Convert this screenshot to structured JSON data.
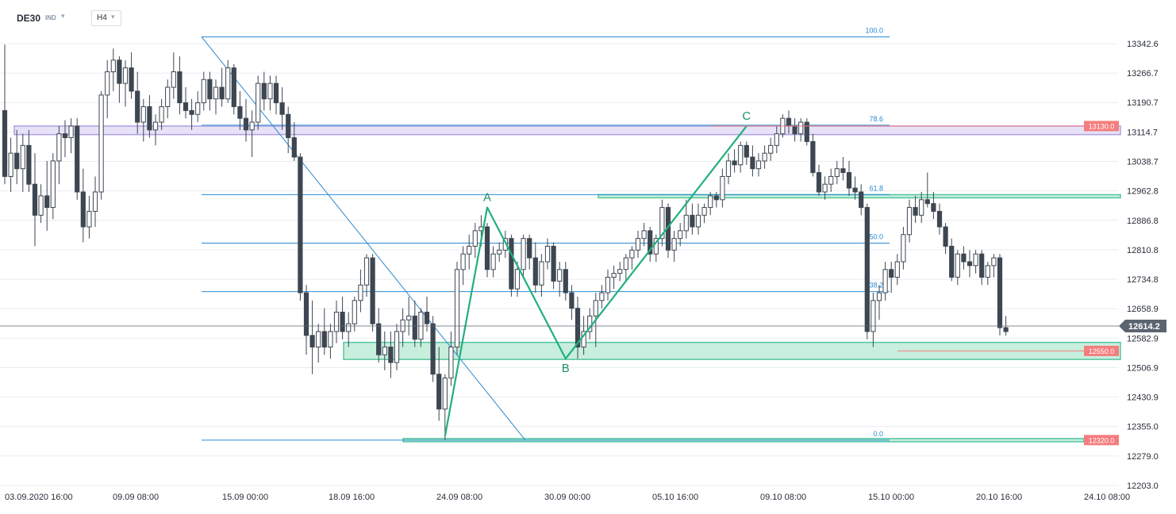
{
  "header": {
    "symbol": "DE30",
    "market": "IND",
    "symbol_dropdown_icon": "chevron-down-icon",
    "timeframe": "H4",
    "timeframe_dropdown_icon": "chevron-down-icon"
  },
  "colors": {
    "candle": "#3d4651",
    "fib_line": "#2b8ad1",
    "fib_text": "#2b8ad1",
    "zone_fill": "#c6eedd",
    "zone_border": "#4cc49a",
    "resistance_fill": "#e6e1f7",
    "resistance_border": "#a99be0",
    "abc_line": "#21b07d",
    "price_tag": "#f47d7d",
    "current_tag": "#5b6470",
    "grid": "#e9ecef"
  },
  "chart_data": {
    "type": "candlestick",
    "instrument": "DE30",
    "timeframe": "H4",
    "y_axis": {
      "ticks": [
        13342.6,
        13266.7,
        13190.7,
        13114.7,
        13038.7,
        12962.8,
        12886.8,
        12810.8,
        12734.8,
        12658.9,
        12582.9,
        12506.9,
        12430.9,
        12355.0,
        12279.0,
        12203.0
      ],
      "range": [
        12203.0,
        13380.0
      ]
    },
    "x_axis": {
      "ticks": [
        "03.09.2020  16:00",
        "09.09  08:00",
        "15.09  00:00",
        "18.09  16:00",
        "24.09  08:00",
        "30.09  00:00",
        "05.10  16:00",
        "09.10  08:00",
        "15.10  00:00",
        "20.10  16:00",
        "24.10  08:00"
      ],
      "range": [
        0,
        1409
      ]
    },
    "candles": [
      [
        0,
        13170,
        13340,
        12980,
        13000
      ],
      [
        1,
        13000,
        13100,
        12960,
        13060
      ],
      [
        2,
        13060,
        13120,
        12980,
        13020
      ],
      [
        3,
        13020,
        13110,
        12960,
        13080
      ],
      [
        4,
        13080,
        13120,
        12960,
        12980
      ],
      [
        5,
        12980,
        13060,
        12820,
        12900
      ],
      [
        6,
        12900,
        12980,
        12880,
        12950
      ],
      [
        7,
        12950,
        13040,
        12860,
        12920
      ],
      [
        8,
        12920,
        13060,
        12890,
        13040
      ],
      [
        9,
        13040,
        13130,
        12980,
        13110
      ],
      [
        10,
        13110,
        13145,
        13050,
        13100
      ],
      [
        11,
        13100,
        13150,
        13060,
        13130
      ],
      [
        12,
        13130,
        13150,
        12940,
        12960
      ],
      [
        13,
        12960,
        13020,
        12830,
        12870
      ],
      [
        14,
        12870,
        12950,
        12840,
        12910
      ],
      [
        15,
        12910,
        13000,
        12870,
        12960
      ],
      [
        16,
        12960,
        13220,
        12940,
        13210
      ],
      [
        17,
        13210,
        13300,
        13150,
        13270
      ],
      [
        18,
        13270,
        13330,
        13220,
        13300
      ],
      [
        19,
        13300,
        13310,
        13190,
        13240
      ],
      [
        20,
        13240,
        13300,
        13180,
        13280
      ],
      [
        21,
        13280,
        13320,
        13200,
        13220
      ],
      [
        22,
        13220,
        13270,
        13110,
        13140
      ],
      [
        23,
        13140,
        13200,
        13090,
        13180
      ],
      [
        24,
        13180,
        13210,
        13100,
        13120
      ],
      [
        25,
        13120,
        13160,
        13080,
        13140
      ],
      [
        26,
        13140,
        13200,
        13120,
        13180
      ],
      [
        27,
        13180,
        13250,
        13150,
        13230
      ],
      [
        28,
        13230,
        13320,
        13200,
        13270
      ],
      [
        29,
        13270,
        13310,
        13160,
        13190
      ],
      [
        30,
        13190,
        13230,
        13150,
        13170
      ],
      [
        31,
        13170,
        13200,
        13120,
        13160
      ],
      [
        32,
        13160,
        13220,
        13140,
        13190
      ],
      [
        33,
        13190,
        13270,
        13170,
        13250
      ],
      [
        34,
        13250,
        13270,
        13170,
        13200
      ],
      [
        35,
        13200,
        13250,
        13160,
        13230
      ],
      [
        36,
        13230,
        13280,
        13180,
        13200
      ],
      [
        37,
        13200,
        13300,
        13190,
        13280
      ],
      [
        38,
        13280,
        13290,
        13160,
        13180
      ],
      [
        39,
        13180,
        13220,
        13120,
        13150
      ],
      [
        40,
        13150,
        13200,
        13090,
        13120
      ],
      [
        41,
        13120,
        13170,
        13050,
        13140
      ],
      [
        42,
        13140,
        13260,
        13120,
        13240
      ],
      [
        43,
        13240,
        13270,
        13170,
        13200
      ],
      [
        44,
        13200,
        13260,
        13170,
        13240
      ],
      [
        45,
        13240,
        13260,
        13160,
        13190
      ],
      [
        46,
        13190,
        13230,
        13120,
        13160
      ],
      [
        47,
        13160,
        13180,
        13060,
        13100
      ],
      [
        48,
        13100,
        13140,
        13040,
        13050
      ],
      [
        49,
        13050,
        13060,
        12680,
        12700
      ],
      [
        50,
        12700,
        12720,
        12540,
        12590
      ],
      [
        51,
        12590,
        12680,
        12490,
        12560
      ],
      [
        52,
        12560,
        12620,
        12520,
        12600
      ],
      [
        53,
        12600,
        12660,
        12540,
        12560
      ],
      [
        54,
        12560,
        12620,
        12530,
        12600
      ],
      [
        55,
        12600,
        12680,
        12570,
        12650
      ],
      [
        56,
        12650,
        12690,
        12580,
        12600
      ],
      [
        57,
        12600,
        12650,
        12560,
        12620
      ],
      [
        58,
        12620,
        12690,
        12600,
        12680
      ],
      [
        59,
        12680,
        12760,
        12650,
        12720
      ],
      [
        60,
        12720,
        12800,
        12690,
        12790
      ],
      [
        61,
        12790,
        12800,
        12600,
        12620
      ],
      [
        62,
        12620,
        12660,
        12520,
        12540
      ],
      [
        63,
        12540,
        12600,
        12500,
        12560
      ],
      [
        64,
        12560,
        12600,
        12480,
        12520
      ],
      [
        65,
        12520,
        12620,
        12500,
        12600
      ],
      [
        66,
        12600,
        12660,
        12560,
        12630
      ],
      [
        67,
        12630,
        12690,
        12590,
        12640
      ],
      [
        68,
        12640,
        12680,
        12560,
        12580
      ],
      [
        69,
        12580,
        12660,
        12560,
        12650
      ],
      [
        70,
        12650,
        12690,
        12600,
        12620
      ],
      [
        71,
        12620,
        12640,
        12470,
        12490
      ],
      [
        72,
        12490,
        12560,
        12370,
        12400
      ],
      [
        73,
        12400,
        12490,
        12320,
        12480
      ],
      [
        74,
        12480,
        12600,
        12460,
        12560
      ],
      [
        75,
        12560,
        12780,
        12540,
        12760
      ],
      [
        76,
        12760,
        12820,
        12720,
        12800
      ],
      [
        77,
        12800,
        12850,
        12760,
        12820
      ],
      [
        78,
        12820,
        12880,
        12790,
        12860
      ],
      [
        79,
        12860,
        12900,
        12820,
        12870
      ],
      [
        80,
        12870,
        12880,
        12740,
        12760
      ],
      [
        81,
        12760,
        12820,
        12740,
        12800
      ],
      [
        82,
        12800,
        12830,
        12780,
        12810
      ],
      [
        83,
        12810,
        12860,
        12790,
        12840
      ],
      [
        84,
        12840,
        12850,
        12690,
        12710
      ],
      [
        85,
        12710,
        12780,
        12690,
        12760
      ],
      [
        86,
        12760,
        12850,
        12740,
        12840
      ],
      [
        87,
        12840,
        12850,
        12760,
        12790
      ],
      [
        88,
        12790,
        12830,
        12700,
        12720
      ],
      [
        89,
        12720,
        12800,
        12690,
        12780
      ],
      [
        90,
        12780,
        12840,
        12760,
        12820
      ],
      [
        91,
        12820,
        12830,
        12710,
        12730
      ],
      [
        92,
        12730,
        12780,
        12690,
        12760
      ],
      [
        93,
        12760,
        12780,
        12680,
        12700
      ],
      [
        94,
        12700,
        12720,
        12630,
        12660
      ],
      [
        95,
        12660,
        12690,
        12530,
        12560
      ],
      [
        96,
        12560,
        12640,
        12540,
        12600
      ],
      [
        97,
        12600,
        12660,
        12580,
        12640
      ],
      [
        98,
        12640,
        12700,
        12560,
        12680
      ],
      [
        99,
        12680,
        12720,
        12660,
        12700
      ],
      [
        100,
        12700,
        12760,
        12680,
        12740
      ],
      [
        101,
        12740,
        12770,
        12710,
        12750
      ],
      [
        102,
        12750,
        12780,
        12730,
        12760
      ],
      [
        103,
        12760,
        12800,
        12730,
        12790
      ],
      [
        104,
        12790,
        12820,
        12760,
        12810
      ],
      [
        105,
        12810,
        12860,
        12790,
        12840
      ],
      [
        106,
        12840,
        12880,
        12820,
        12860
      ],
      [
        107,
        12860,
        12870,
        12780,
        12800
      ],
      [
        108,
        12800,
        12850,
        12780,
        12840
      ],
      [
        109,
        12840,
        12940,
        12820,
        12920
      ],
      [
        110,
        12920,
        12930,
        12790,
        12810
      ],
      [
        111,
        12810,
        12860,
        12780,
        12840
      ],
      [
        112,
        12840,
        12880,
        12820,
        12860
      ],
      [
        113,
        12860,
        12940,
        12840,
        12900
      ],
      [
        114,
        12900,
        12930,
        12850,
        12870
      ],
      [
        115,
        12870,
        12930,
        12850,
        12900
      ],
      [
        116,
        12900,
        12930,
        12880,
        12920
      ],
      [
        117,
        12920,
        12960,
        12900,
        12950
      ],
      [
        118,
        12950,
        12960,
        12920,
        12940
      ],
      [
        119,
        12940,
        13020,
        12920,
        13000
      ],
      [
        120,
        13000,
        13060,
        12980,
        13040
      ],
      [
        121,
        13040,
        13070,
        13010,
        13030
      ],
      [
        122,
        13030,
        13090,
        13010,
        13080
      ],
      [
        123,
        13080,
        13090,
        13030,
        13050
      ],
      [
        124,
        13050,
        13080,
        13000,
        13020
      ],
      [
        125,
        13020,
        13060,
        13000,
        13040
      ],
      [
        126,
        13040,
        13080,
        13020,
        13060
      ],
      [
        127,
        13060,
        13100,
        13040,
        13080
      ],
      [
        128,
        13080,
        13130,
        13060,
        13110
      ],
      [
        129,
        13110,
        13160,
        13100,
        13150
      ],
      [
        130,
        13150,
        13170,
        13110,
        13130
      ],
      [
        131,
        13130,
        13150,
        13090,
        13110
      ],
      [
        132,
        13110,
        13150,
        13090,
        13140
      ],
      [
        133,
        13140,
        13150,
        13080,
        13090
      ],
      [
        134,
        13090,
        13110,
        13000,
        13010
      ],
      [
        135,
        13010,
        13030,
        12950,
        12960
      ],
      [
        136,
        12960,
        13000,
        12940,
        12980
      ],
      [
        137,
        12980,
        13020,
        12960,
        13000
      ],
      [
        138,
        13000,
        13040,
        12980,
        13020
      ],
      [
        139,
        13020,
        13050,
        12990,
        13010
      ],
      [
        140,
        13010,
        13040,
        12950,
        12970
      ],
      [
        141,
        12970,
        13000,
        12940,
        12960
      ],
      [
        142,
        12960,
        12980,
        12900,
        12920
      ],
      [
        143,
        12920,
        12930,
        12580,
        12600
      ],
      [
        144,
        12600,
        12700,
        12560,
        12680
      ],
      [
        145,
        12680,
        12720,
        12630,
        12700
      ],
      [
        146,
        12700,
        12780,
        12680,
        12760
      ],
      [
        147,
        12760,
        12780,
        12700,
        12740
      ],
      [
        148,
        12740,
        12800,
        12720,
        12780
      ],
      [
        149,
        12780,
        12870,
        12760,
        12850
      ],
      [
        150,
        12850,
        12940,
        12830,
        12920
      ],
      [
        151,
        12920,
        12950,
        12880,
        12900
      ],
      [
        152,
        12900,
        12960,
        12880,
        12940
      ],
      [
        153,
        12940,
        13010,
        12920,
        12930
      ],
      [
        154,
        12930,
        12960,
        12890,
        12910
      ],
      [
        155,
        12910,
        12930,
        12850,
        12870
      ],
      [
        156,
        12870,
        12880,
        12800,
        12820
      ],
      [
        157,
        12820,
        12840,
        12730,
        12740
      ],
      [
        158,
        12740,
        12810,
        12720,
        12800
      ],
      [
        159,
        12800,
        12820,
        12760,
        12780
      ],
      [
        160,
        12780,
        12810,
        12740,
        12770
      ],
      [
        161,
        12770,
        12810,
        12750,
        12800
      ],
      [
        162,
        12800,
        12810,
        12720,
        12740
      ],
      [
        163,
        12740,
        12780,
        12720,
        12770
      ],
      [
        164,
        12770,
        12800,
        12740,
        12790
      ],
      [
        165,
        12790,
        12800,
        12590,
        12610
      ],
      [
        166,
        12610,
        12640,
        12590,
        12600
      ]
    ],
    "current_price": "12614.2",
    "fibonacci": [
      {
        "level": "100.0",
        "price": 13360.0
      },
      {
        "level": "78.6",
        "price": 13132.0
      },
      {
        "level": "61.8",
        "price": 12953.0
      },
      {
        "level": "50.0",
        "price": 12828.0
      },
      {
        "level": "38.2",
        "price": 12703.0
      },
      {
        "level": "0.0",
        "price": 12320.0
      }
    ],
    "zones": [
      {
        "name": "resistance",
        "low": 13108.0,
        "high": 13130.0,
        "color": "purple"
      },
      {
        "name": "upper-support",
        "low": 12945.0,
        "high": 12953.0,
        "color": "green"
      },
      {
        "name": "support",
        "low": 12528.0,
        "high": 12572.0,
        "color": "green"
      },
      {
        "name": "bottom",
        "low": 12317.0,
        "high": 12324.0,
        "color": "green"
      }
    ],
    "price_labels": [
      "13130.0",
      "12550.0",
      "12320.0"
    ],
    "abc_pattern": [
      {
        "label": "",
        "bar": 73,
        "price": 12330.0
      },
      {
        "label": "A",
        "bar": 80,
        "price": 12920.0
      },
      {
        "label": "B",
        "bar": 93,
        "price": 12530.0
      },
      {
        "label": "C",
        "bar": 123,
        "price": 13130.0
      }
    ]
  }
}
